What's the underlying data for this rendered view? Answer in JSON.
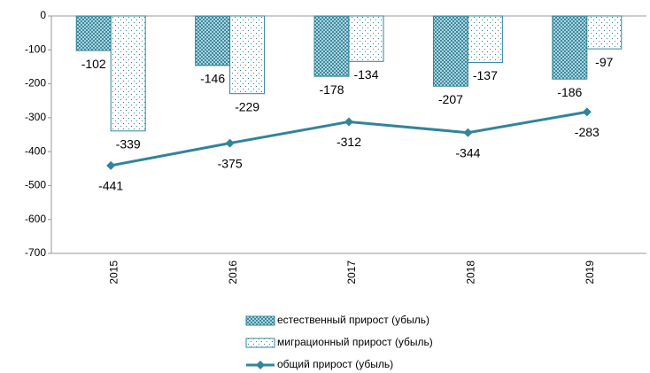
{
  "chart_data": {
    "type": "bar",
    "categories": [
      "2015",
      "2016",
      "2017",
      "2018",
      "2019"
    ],
    "series": [
      {
        "name": "естественный прирост (убыль)",
        "type": "bar",
        "color": "#31849b",
        "values": [
          -102,
          -146,
          -178,
          -207,
          -186
        ]
      },
      {
        "name": "миграционный прирост (убыль)",
        "type": "bar",
        "color": "#31849b",
        "values": [
          -339,
          -229,
          -134,
          -137,
          -97
        ]
      },
      {
        "name": "общий прирост (убыль)",
        "type": "line",
        "color": "#31849b",
        "values": [
          -441,
          -375,
          -312,
          -344,
          -283
        ]
      }
    ],
    "ylim": [
      -700,
      0
    ],
    "yticks": [
      0,
      -100,
      -200,
      -300,
      -400,
      -500,
      -600,
      -700
    ],
    "grid": false,
    "legend": "bottom"
  }
}
